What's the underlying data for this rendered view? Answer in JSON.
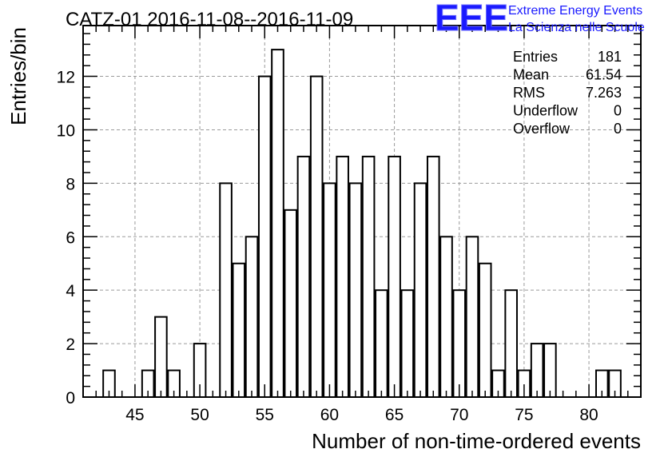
{
  "chart_data": {
    "type": "bar",
    "title": "CATZ-01 2016-11-08--2016-11-09",
    "xlabel": "Number of non-time-ordered events",
    "ylabel": "Entries/bin",
    "xlim": [
      41,
      84
    ],
    "ylim": [
      0,
      13.9
    ],
    "x_ticks": [
      45,
      50,
      55,
      60,
      65,
      70,
      75,
      80
    ],
    "y_ticks": [
      0,
      2,
      4,
      6,
      8,
      10,
      12
    ],
    "grid": true,
    "bin_width": 1,
    "bars": [
      {
        "x": 43,
        "value": 1
      },
      {
        "x": 46,
        "value": 1
      },
      {
        "x": 47,
        "value": 3
      },
      {
        "x": 48,
        "value": 1
      },
      {
        "x": 50,
        "value": 2
      },
      {
        "x": 52,
        "value": 8
      },
      {
        "x": 53,
        "value": 5
      },
      {
        "x": 54,
        "value": 6
      },
      {
        "x": 55,
        "value": 12
      },
      {
        "x": 56,
        "value": 13
      },
      {
        "x": 57,
        "value": 7
      },
      {
        "x": 58,
        "value": 9
      },
      {
        "x": 59,
        "value": 12
      },
      {
        "x": 60,
        "value": 8
      },
      {
        "x": 61,
        "value": 9
      },
      {
        "x": 62,
        "value": 8
      },
      {
        "x": 63,
        "value": 9
      },
      {
        "x": 64,
        "value": 4
      },
      {
        "x": 65,
        "value": 9
      },
      {
        "x": 66,
        "value": 4
      },
      {
        "x": 67,
        "value": 8
      },
      {
        "x": 68,
        "value": 9
      },
      {
        "x": 69,
        "value": 6
      },
      {
        "x": 70,
        "value": 4
      },
      {
        "x": 71,
        "value": 6
      },
      {
        "x": 72,
        "value": 5
      },
      {
        "x": 73,
        "value": 1
      },
      {
        "x": 74,
        "value": 4
      },
      {
        "x": 75,
        "value": 1
      },
      {
        "x": 76,
        "value": 2
      },
      {
        "x": 77,
        "value": 2
      },
      {
        "x": 81,
        "value": 1
      },
      {
        "x": 82,
        "value": 1
      }
    ],
    "stats": [
      {
        "label": "Entries",
        "value": "181"
      },
      {
        "label": "Mean",
        "value": "61.54"
      },
      {
        "label": "RMS",
        "value": "7.263"
      },
      {
        "label": "Underflow",
        "value": "0"
      },
      {
        "label": "Overflow",
        "value": "0"
      }
    ],
    "legend_placement": "top-right"
  },
  "logo": {
    "mark": "EEE",
    "line1": "Extreme Energy Events",
    "line2": "La Scienza nelle Scuole",
    "color": "#1a1aff"
  }
}
